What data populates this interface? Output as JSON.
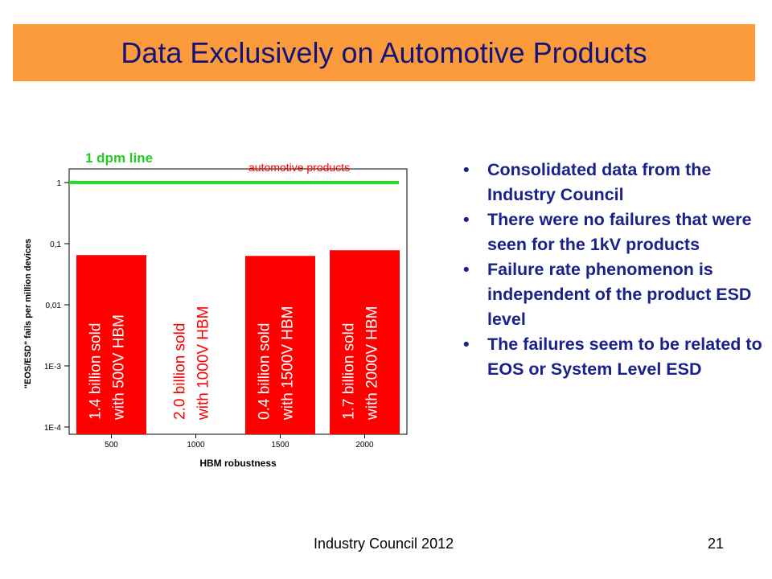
{
  "slide": {
    "title": "Data Exclusively on Automotive Products",
    "footer": "Industry Council 2012",
    "page_number": "21"
  },
  "bullets": [
    "Consolidated data from the Industry Council",
    "There were no failures that were seen for the 1kV products",
    "Failure rate phenomenon is independent of the product ESD level",
    "The failures seem to be related to EOS or System Level ESD"
  ],
  "chart_data": {
    "type": "bar",
    "xlabel": "HBM robustness",
    "ylabel": "\"EOS/ESD\" fails per million devices",
    "yscale": "log",
    "ylim": [
      0.0001,
      1
    ],
    "yticks": [
      {
        "value": 1,
        "label": "1"
      },
      {
        "value": 0.1,
        "label": "0,1"
      },
      {
        "value": 0.01,
        "label": "0,01"
      },
      {
        "value": 0.001,
        "label": "1E-3"
      },
      {
        "value": 0.0001,
        "label": "1E-4"
      }
    ],
    "categories": [
      "500",
      "1000",
      "1500",
      "2000"
    ],
    "values": [
      0.065,
      null,
      0.063,
      0.078
    ],
    "bar_labels": [
      [
        "1.4 billion sold",
        "with 500V HBM"
      ],
      [
        "2.0 billion sold",
        "with 1000V HBM"
      ],
      [
        "0.4 billion sold",
        "with 1500V HBM"
      ],
      [
        "1.7 billion sold",
        "with 2000V HBM"
      ]
    ],
    "reference_line": {
      "value": 1,
      "label": "1 dpm line"
    },
    "annotation": "automotive products",
    "colors": {
      "bar": "#ff0000",
      "line": "#22dd22",
      "line_label": "#22cc22",
      "annotation": "#ff0000"
    }
  }
}
